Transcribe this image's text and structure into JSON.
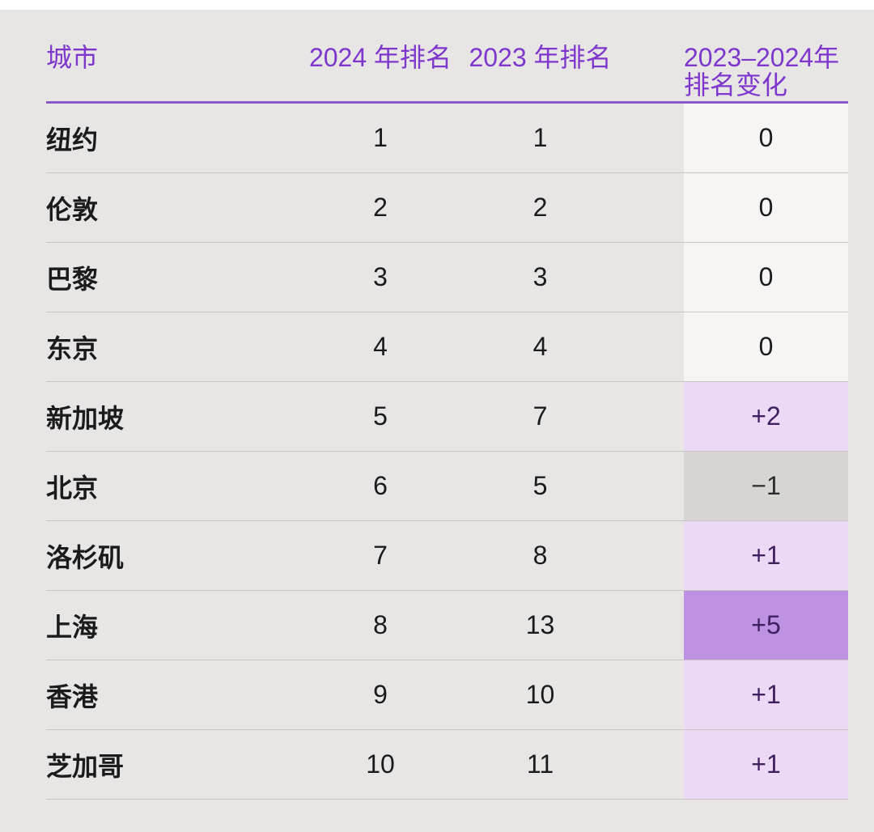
{
  "table": {
    "headers": {
      "city": "城市",
      "rank2024": "2024 年排名",
      "rank2023": "2023 年排名",
      "change_line1": "2023–2024年",
      "change_line2": "排名变化"
    },
    "rows": [
      {
        "city": "纽约",
        "rank2024": "1",
        "rank2023": "1",
        "change": "0",
        "change_type": "zero"
      },
      {
        "city": "伦敦",
        "rank2024": "2",
        "rank2023": "2",
        "change": "0",
        "change_type": "zero"
      },
      {
        "city": "巴黎",
        "rank2024": "3",
        "rank2023": "3",
        "change": "0",
        "change_type": "zero"
      },
      {
        "city": "东京",
        "rank2024": "4",
        "rank2023": "4",
        "change": "0",
        "change_type": "zero"
      },
      {
        "city": "新加坡",
        "rank2024": "5",
        "rank2023": "7",
        "change": "+2",
        "change_type": "up"
      },
      {
        "city": "北京",
        "rank2024": "6",
        "rank2023": "5",
        "change": "−1",
        "change_type": "down"
      },
      {
        "city": "洛杉矶",
        "rank2024": "7",
        "rank2023": "8",
        "change": "+1",
        "change_type": "up"
      },
      {
        "city": "上海",
        "rank2024": "8",
        "rank2023": "13",
        "change": "+5",
        "change_type": "up-strong"
      },
      {
        "city": "香港",
        "rank2024": "9",
        "rank2023": "10",
        "change": "+1",
        "change_type": "up"
      },
      {
        "city": "芝加哥",
        "rank2024": "10",
        "rank2023": "11",
        "change": "+1",
        "change_type": "up"
      }
    ]
  },
  "colors": {
    "page_bg": "#e8e6e4",
    "header_text": "#7e36cd",
    "header_underline": "#8a5bc9",
    "row_separator": "#c9c7c4",
    "body_text": "#1b1b1d",
    "change_zero_bg": "#f6f5f3",
    "change_up_bg": "#ecd9f6",
    "change_up_strong_bg": "#bd92e2",
    "change_down_bg": "#d7d5d2",
    "change_up_text": "#3f2160",
    "change_down_text": "#2c2c2e"
  },
  "chart_data": {
    "type": "table",
    "title": "",
    "columns": [
      "城市",
      "2024 年排名",
      "2023 年排名",
      "2023–2024年排名变化"
    ],
    "rows": [
      [
        "纽约",
        1,
        1,
        0
      ],
      [
        "伦敦",
        2,
        2,
        0
      ],
      [
        "巴黎",
        3,
        3,
        0
      ],
      [
        "东京",
        4,
        4,
        0
      ],
      [
        "新加坡",
        5,
        7,
        2
      ],
      [
        "北京",
        6,
        5,
        -1
      ],
      [
        "洛杉矶",
        7,
        8,
        1
      ],
      [
        "上海",
        8,
        13,
        5
      ],
      [
        "香港",
        9,
        10,
        1
      ],
      [
        "芝加哥",
        10,
        11,
        1
      ]
    ]
  }
}
